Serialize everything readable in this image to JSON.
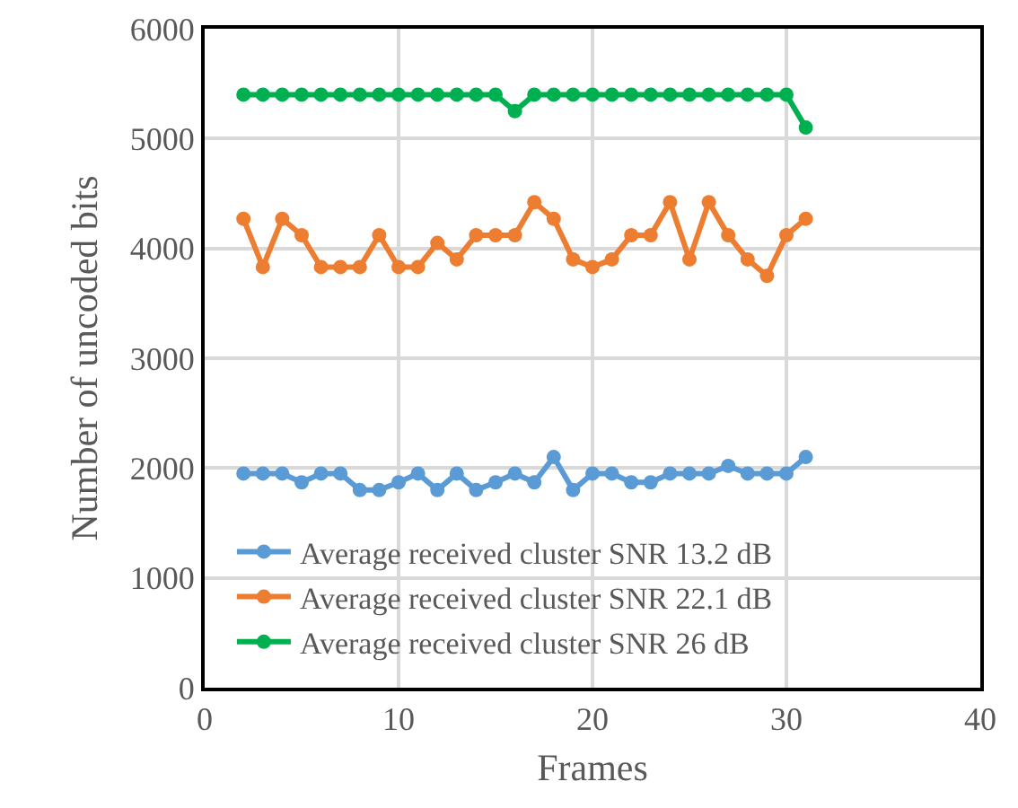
{
  "chart_data": {
    "type": "line",
    "xlabel": "Frames",
    "ylabel": "Number of uncoded bits",
    "x": [
      2,
      3,
      4,
      5,
      6,
      7,
      8,
      9,
      10,
      11,
      12,
      13,
      14,
      15,
      16,
      17,
      18,
      19,
      20,
      21,
      22,
      23,
      24,
      25,
      26,
      27,
      28,
      29,
      30,
      31
    ],
    "series": [
      {
        "name": "Average received cluster SNR 13.2 dB",
        "color": "#5b9bd5",
        "values": [
          1950,
          1950,
          1950,
          1870,
          1950,
          1950,
          1800,
          1800,
          1870,
          1950,
          1800,
          1950,
          1800,
          1870,
          1950,
          1870,
          2100,
          1800,
          1950,
          1950,
          1870,
          1870,
          1950,
          1950,
          1950,
          2020,
          1950,
          1950,
          1950,
          2100
        ]
      },
      {
        "name": "Average received cluster SNR 22.1 dB",
        "color": "#ed7d31",
        "values": [
          4270,
          3830,
          4270,
          4120,
          3830,
          3830,
          3830,
          4120,
          3830,
          3830,
          4050,
          3900,
          4120,
          4120,
          4120,
          4420,
          4270,
          3900,
          3830,
          3900,
          4120,
          4120,
          4420,
          3900,
          4420,
          4120,
          3900,
          3750,
          4120,
          4270
        ]
      },
      {
        "name": "Average received cluster SNR 26 dB",
        "color": "#00b050",
        "values": [
          5400,
          5400,
          5400,
          5400,
          5400,
          5400,
          5400,
          5400,
          5400,
          5400,
          5400,
          5400,
          5400,
          5400,
          5250,
          5400,
          5400,
          5400,
          5400,
          5400,
          5400,
          5400,
          5400,
          5400,
          5400,
          5400,
          5400,
          5400,
          5400,
          5100
        ]
      }
    ],
    "xlim": [
      0,
      40
    ],
    "xticks": [
      0,
      10,
      20,
      30,
      40
    ],
    "ylim": [
      0,
      6000
    ],
    "yticks": [
      0,
      1000,
      2000,
      3000,
      4000,
      5000,
      6000
    ],
    "grid": true,
    "legend": "bottom",
    "marker": "circle",
    "line_style": "solid"
  }
}
